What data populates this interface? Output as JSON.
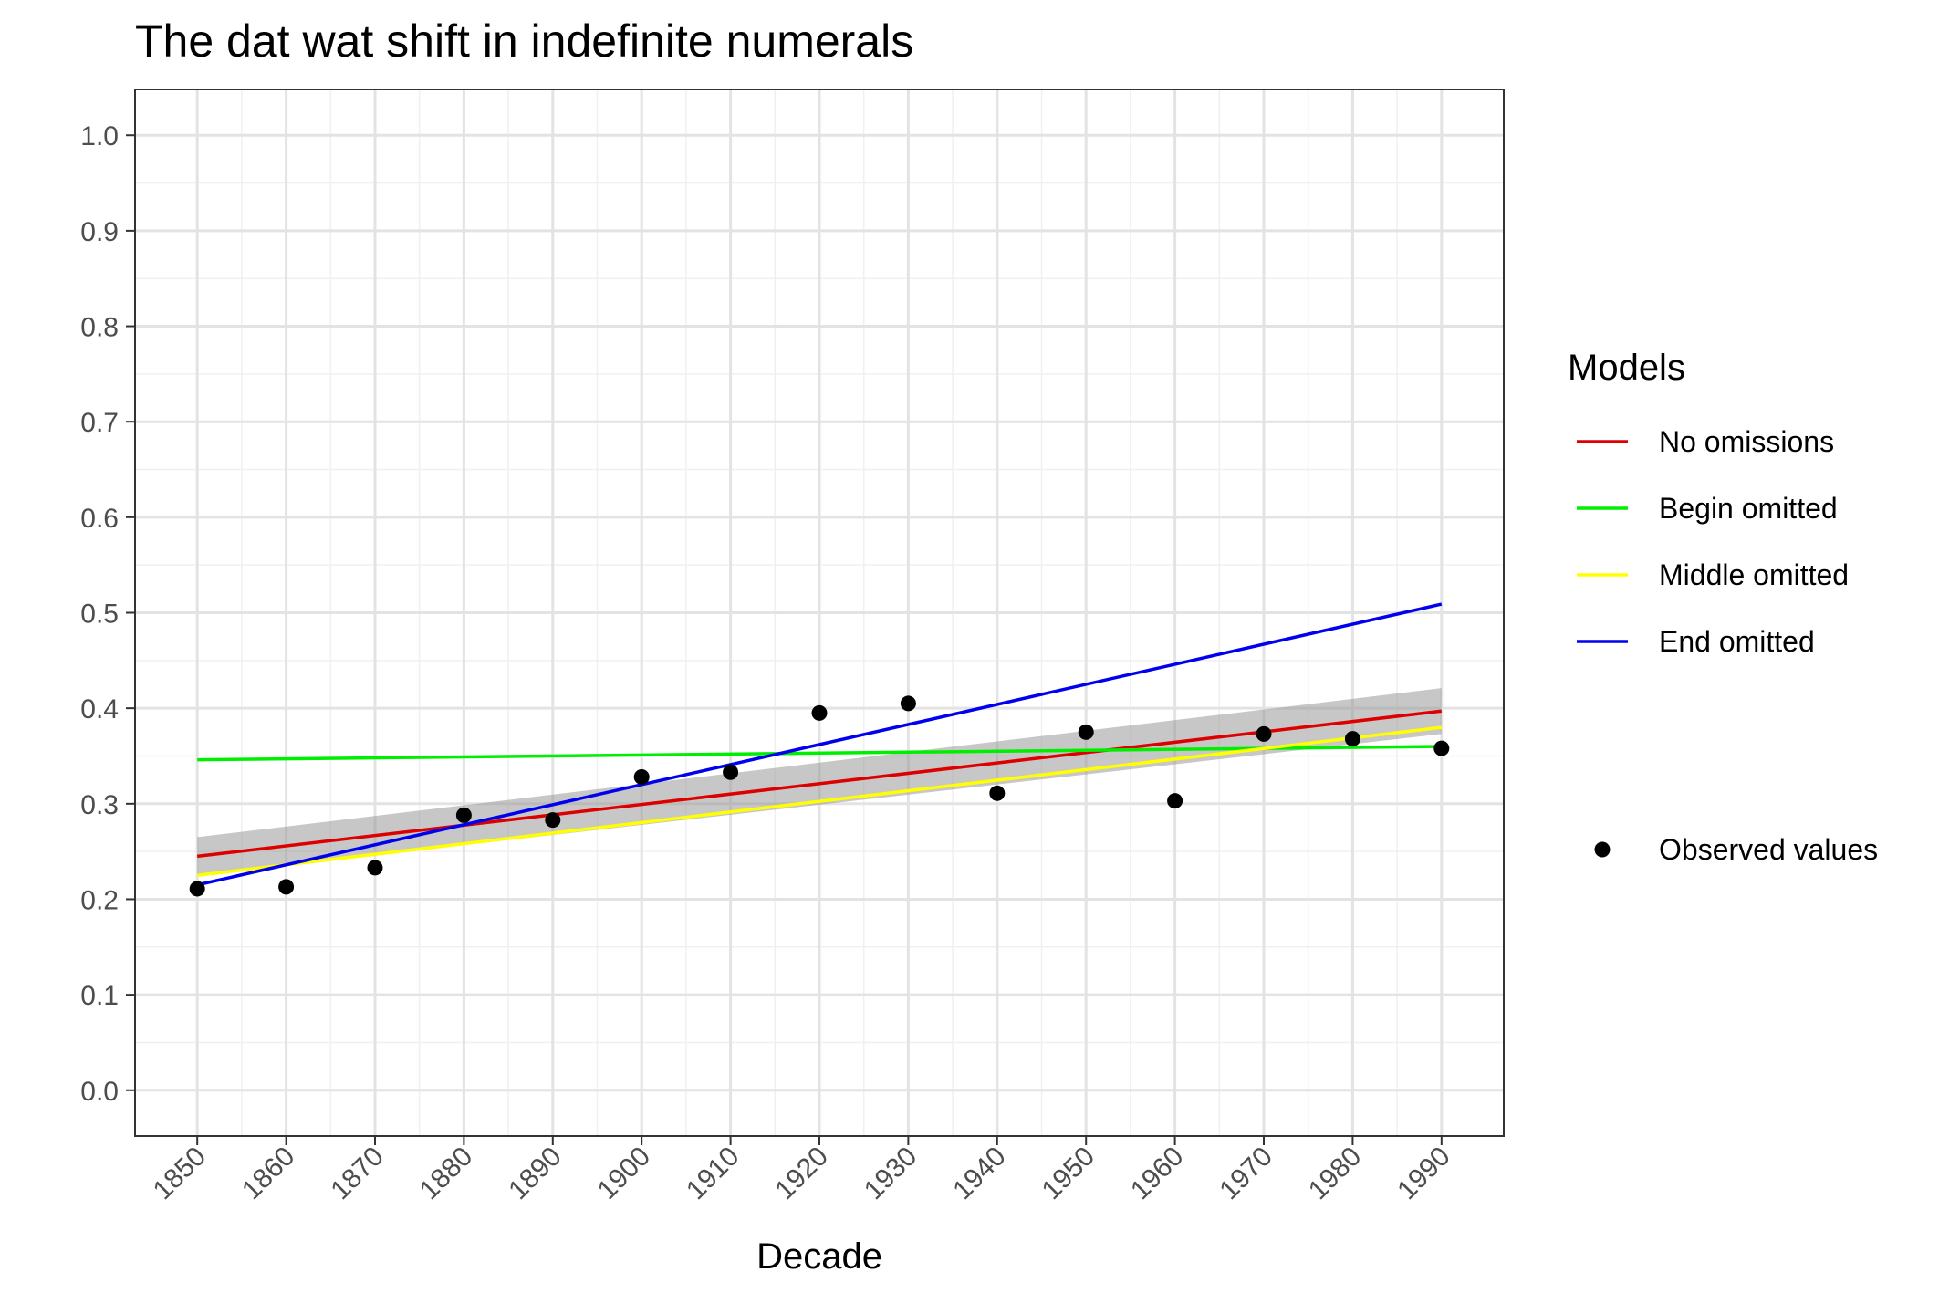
{
  "chart_data": {
    "type": "line",
    "title": "The dat wat shift in indefinite numerals",
    "xlabel": "Decade",
    "ylabel": "",
    "xlim": [
      1843,
      1997
    ],
    "ylim": [
      -0.048,
      1.048
    ],
    "x_ticks": [
      1850,
      1860,
      1870,
      1880,
      1890,
      1900,
      1910,
      1920,
      1930,
      1940,
      1950,
      1960,
      1970,
      1980,
      1990
    ],
    "x_tick_labels": [
      "1850",
      "1860",
      "1870",
      "1880",
      "1890",
      "1900",
      "1910",
      "1920",
      "1930",
      "1940",
      "1950",
      "1960",
      "1970",
      "1980",
      "1990"
    ],
    "y_ticks": [
      0.0,
      0.1,
      0.2,
      0.3,
      0.4,
      0.5,
      0.6,
      0.7,
      0.8,
      0.9,
      1.0
    ],
    "y_tick_labels": [
      "0.0",
      "0.1",
      "0.2",
      "0.3",
      "0.4",
      "0.5",
      "0.6",
      "0.7",
      "0.8",
      "0.9",
      "1.0"
    ],
    "grid": true,
    "legend_title": "Models",
    "legend_position": "right",
    "series": [
      {
        "name": "No omissions",
        "color": "#dd0000",
        "x": [
          1850,
          1990
        ],
        "y": [
          0.245,
          0.397
        ],
        "ci_lower": [
          0.225,
          0.373
        ],
        "ci_upper": [
          0.265,
          0.421
        ],
        "ci_color": "#999999"
      },
      {
        "name": "Begin omitted",
        "color": "#00ee00",
        "x": [
          1850,
          1990
        ],
        "y": [
          0.346,
          0.36
        ]
      },
      {
        "name": "Middle omitted",
        "color": "#ffff00",
        "x": [
          1850,
          1990
        ],
        "y": [
          0.225,
          0.38
        ]
      },
      {
        "name": "End omitted",
        "color": "#0000ee",
        "x": [
          1850,
          1990
        ],
        "y": [
          0.215,
          0.509
        ]
      }
    ],
    "points": {
      "name": "Observed values",
      "color": "#000000",
      "x": [
        1850,
        1860,
        1870,
        1880,
        1890,
        1900,
        1910,
        1920,
        1930,
        1940,
        1950,
        1960,
        1970,
        1980,
        1990
      ],
      "y": [
        0.211,
        0.213,
        0.233,
        0.288,
        0.283,
        0.328,
        0.333,
        0.395,
        0.405,
        0.311,
        0.375,
        0.303,
        0.373,
        0.368,
        0.358
      ]
    }
  }
}
